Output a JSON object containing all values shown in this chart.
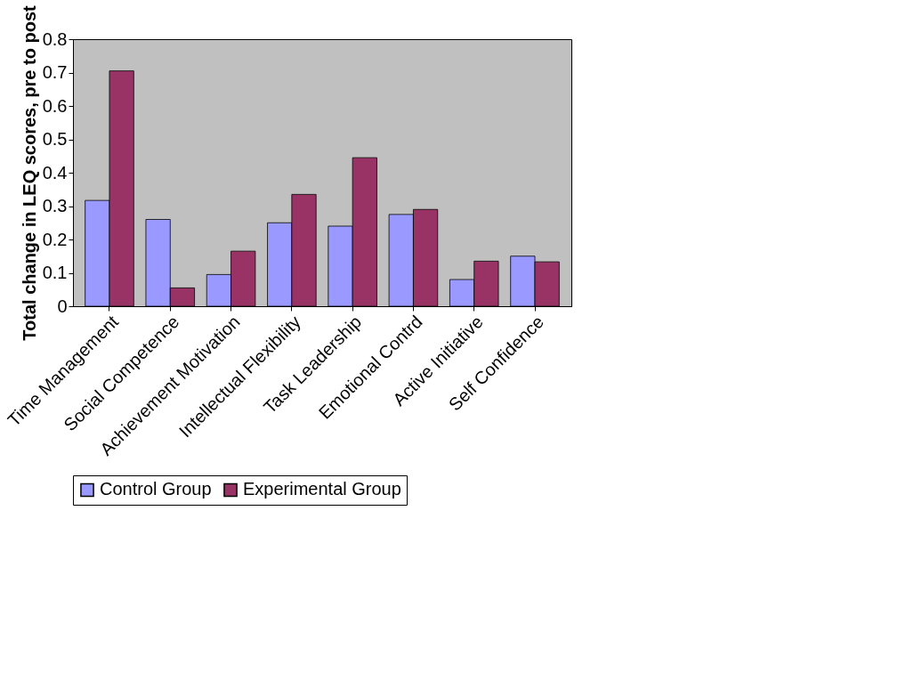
{
  "chart_data": {
    "type": "bar",
    "ylabel": "Total change in LEQ scores, pre to post",
    "categories": [
      "Time Management",
      "Social Competence",
      "Achievement Motivation",
      "Intellectual Flexibility",
      "Task Leadership",
      "Emotional Contrd",
      "Active Initiative",
      "Self Confidence"
    ],
    "series": [
      {
        "name": "Control Group",
        "color": "#9999ff",
        "values": [
          0.317,
          0.26,
          0.095,
          0.25,
          0.24,
          0.275,
          0.08,
          0.15
        ]
      },
      {
        "name": "Experimental Group",
        "color": "#993366",
        "values": [
          0.705,
          0.055,
          0.165,
          0.335,
          0.445,
          0.29,
          0.135,
          0.133
        ]
      }
    ],
    "ylim": [
      0,
      0.8
    ],
    "yticks": [
      0,
      0.1,
      0.2,
      0.3,
      0.4,
      0.5,
      0.6,
      0.7,
      0.8
    ],
    "grid": false,
    "legend": "bottom"
  }
}
